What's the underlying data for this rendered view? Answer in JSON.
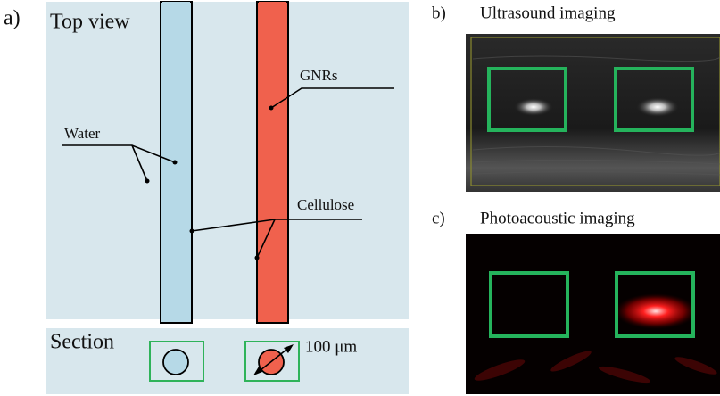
{
  "panel_a": {
    "label": "a)",
    "title": "Top view",
    "annotations": {
      "water": "Water",
      "gnrs": "GNRs",
      "cellulose": "Cellulose"
    },
    "section": {
      "title": "Section",
      "scale": "100 μm"
    }
  },
  "panel_b": {
    "label": "b)",
    "title": "Ultrasound imaging"
  },
  "panel_c": {
    "label": "c)",
    "title": "Photoacoustic imaging"
  }
}
